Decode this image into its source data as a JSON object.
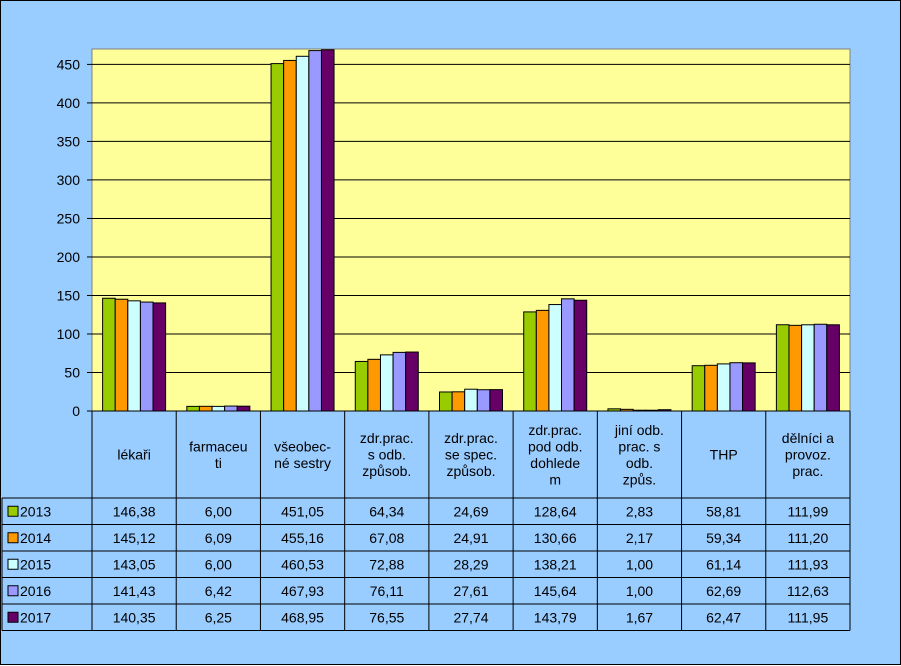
{
  "chart_data": {
    "type": "bar",
    "title": "",
    "xlabel": "",
    "ylabel": "",
    "ylim": [
      0,
      470
    ],
    "y_ticks": [
      "0",
      "50",
      "100",
      "150",
      "200",
      "250",
      "300",
      "350",
      "400",
      "450"
    ],
    "grid": true,
    "legend": "data-table",
    "plot_background": "#ffff99",
    "page_background": "#99ccff",
    "categories": [
      [
        "lékaři"
      ],
      [
        "farmaceu",
        "ti"
      ],
      [
        "všeobec-",
        "né sestry"
      ],
      [
        "zdr.prac.",
        "s odb.",
        "způsob."
      ],
      [
        "zdr.prac.",
        "se spec.",
        "způsob."
      ],
      [
        "zdr.prac.",
        "pod odb.",
        "dohlede",
        "m"
      ],
      [
        "jiní odb.",
        "prac. s",
        "odb.",
        "způs."
      ],
      [
        "THP"
      ],
      [
        "dělníci a",
        "provoz.",
        "prac."
      ]
    ],
    "series": [
      {
        "name": "2013",
        "color": "#99cc00",
        "labels": [
          "146,38",
          "6,00",
          "451,05",
          "64,34",
          "24,69",
          "128,64",
          "2,83",
          "58,81",
          "111,99"
        ],
        "values": [
          146.38,
          6.0,
          451.05,
          64.34,
          24.69,
          128.64,
          2.83,
          58.81,
          111.99
        ]
      },
      {
        "name": "2014",
        "color": "#ff9900",
        "labels": [
          "145,12",
          "6,09",
          "455,16",
          "67,08",
          "24,91",
          "130,66",
          "2,17",
          "59,34",
          "111,20"
        ],
        "values": [
          145.12,
          6.09,
          455.16,
          67.08,
          24.91,
          130.66,
          2.17,
          59.34,
          111.2
        ]
      },
      {
        "name": "2015",
        "color": "#ccffff",
        "labels": [
          "143,05",
          "6,00",
          "460,53",
          "72,88",
          "28,29",
          "138,21",
          "1,00",
          "61,14",
          "111,93"
        ],
        "values": [
          143.05,
          6.0,
          460.53,
          72.88,
          28.29,
          138.21,
          1.0,
          61.14,
          111.93
        ]
      },
      {
        "name": "2016",
        "color": "#9999ff",
        "labels": [
          "141,43",
          "6,42",
          "467,93",
          "76,11",
          "27,61",
          "145,64",
          "1,00",
          "62,69",
          "112,63"
        ],
        "values": [
          141.43,
          6.42,
          467.93,
          76.11,
          27.61,
          145.64,
          1.0,
          62.69,
          112.63
        ]
      },
      {
        "name": "2017",
        "color": "#660066",
        "labels": [
          "140,35",
          "6,25",
          "468,95",
          "76,55",
          "27,74",
          "143,79",
          "1,67",
          "62,47",
          "111,95"
        ],
        "values": [
          140.35,
          6.25,
          468.95,
          76.55,
          27.74,
          143.79,
          1.67,
          62.47,
          111.95
        ]
      }
    ]
  }
}
